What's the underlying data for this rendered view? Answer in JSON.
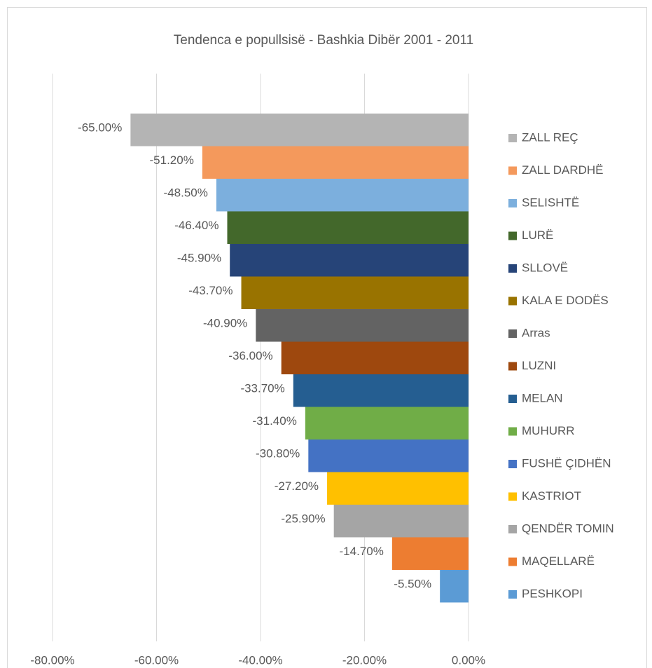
{
  "chart_data": {
    "type": "bar",
    "orientation": "horizontal",
    "title": "Tendenca e popullsisë - Bashkia Dibër 2001  - 2011",
    "categories": [
      "ZALL REÇ",
      "ZALL DARDHË",
      "SELISHTË",
      "LURË",
      "SLLOVË",
      "KALA E DODËS",
      "Arras",
      "LUZNI",
      "MELAN",
      "MUHURR",
      "FUSHË ÇIDHËN",
      "KASTRIOT",
      "QENDËR TOMIN",
      "MAQELLARË",
      "PESHKOPI"
    ],
    "values": [
      -65,
      -51.2,
      -48.5,
      -46.4,
      -45.9,
      -43.7,
      -40.9,
      -36,
      -33.7,
      -31.4,
      -30.8,
      -27.2,
      -25.9,
      -14.7,
      -5.5
    ],
    "value_labels": [
      "-65.00%",
      "-51.20%",
      "-48.50%",
      "-46.40%",
      "-45.90%",
      "-43.70%",
      "-40.90%",
      "-36.00%",
      "-33.70%",
      "-31.40%",
      "-30.80%",
      "-27.20%",
      "-25.90%",
      "-14.70%",
      "-5.50%"
    ],
    "colors": [
      "#b4b4b4",
      "#f4995c",
      "#7cafdd",
      "#43682b",
      "#264478",
      "#997300",
      "#636363",
      "#9e480e",
      "#255e91",
      "#70ad47",
      "#4472c4",
      "#ffc000",
      "#a5a5a5",
      "#ed7d31",
      "#5b9bd5"
    ],
    "xlim": [
      -80,
      0
    ],
    "xticks": [
      {
        "value": -80,
        "label": "-80.00%"
      },
      {
        "value": -60,
        "label": "-60.00%"
      },
      {
        "value": -40,
        "label": "-40.00%"
      },
      {
        "value": -20,
        "label": "-20.00%"
      },
      {
        "value": 0,
        "label": "0.00%"
      }
    ],
    "grid": true,
    "legend": "right"
  }
}
